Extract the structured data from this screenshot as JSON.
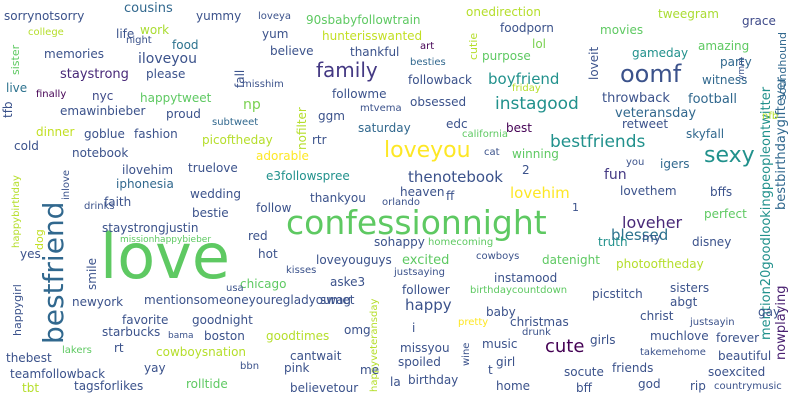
{
  "words": [
    {
      "text": "love",
      "color": "#5ec962"
    },
    {
      "text": "confessionnight",
      "color": "#5ec962"
    },
    {
      "text": "bestfriend",
      "color": "#31688e"
    },
    {
      "text": "loveyou",
      "color": "#fde725"
    },
    {
      "text": "oomf",
      "color": "#3b528b"
    },
    {
      "text": "family",
      "color": "#443983"
    },
    {
      "text": "sexy",
      "color": "#21918c"
    },
    {
      "text": "cute",
      "color": "#440154"
    },
    {
      "text": "instagood",
      "color": "#21918c"
    },
    {
      "text": "bestfriends",
      "color": "#21918c"
    },
    {
      "text": "loveher",
      "color": "#482878"
    },
    {
      "text": "thenotebook",
      "color": "#3b528b"
    },
    {
      "text": "boyfriend",
      "color": "#21918c"
    },
    {
      "text": "lovehim",
      "color": "#fde725"
    },
    {
      "text": "blessed",
      "color": "#2c728e"
    },
    {
      "text": "happy",
      "color": "#3b528b"
    },
    {
      "text": "excited",
      "color": "#5ec962"
    },
    {
      "text": "staystrong",
      "color": "#482878"
    },
    {
      "text": "iloveyou",
      "color": "#3b528b"
    },
    {
      "text": "mention20goodlookingpeopleontwitter",
      "color": "#21918c"
    },
    {
      "text": "bestbirthdaygiftever",
      "color": "#31688e"
    },
    {
      "text": "nowplaying",
      "color": "#481f70"
    },
    {
      "text": "football",
      "color": "#31688e"
    },
    {
      "text": "throwback",
      "color": "#3b528b"
    },
    {
      "text": "veteransday",
      "color": "#31688e"
    },
    {
      "text": "cousins",
      "color": "#31688e"
    },
    {
      "text": "yummy",
      "color": "#3b528b"
    },
    {
      "text": "sorrynotsorry",
      "color": "#3b528b"
    },
    {
      "text": "90sbabyfollowtrain",
      "color": "#5ec962"
    },
    {
      "text": "onedirection",
      "color": "#b5de2b"
    },
    {
      "text": "tweegram",
      "color": "#aadc32"
    },
    {
      "text": "grace",
      "color": "#3e4a89"
    },
    {
      "text": "sister",
      "color": "#5ec962"
    },
    {
      "text": "college",
      "color": "#b5de2b"
    },
    {
      "text": "work",
      "color": "#aadc32"
    },
    {
      "text": "yum",
      "color": "#3b528b"
    },
    {
      "text": "hunterisswanted",
      "color": "#c2df23"
    },
    {
      "text": "foodporn",
      "color": "#3b528b"
    },
    {
      "text": "movies",
      "color": "#5ec962"
    },
    {
      "text": "night",
      "color": "#3b528b"
    },
    {
      "text": "food",
      "color": "#2c728e"
    },
    {
      "text": "believe",
      "color": "#3b528b"
    },
    {
      "text": "cutie",
      "color": "#b5de2b"
    },
    {
      "text": "lol",
      "color": "#7ad151"
    },
    {
      "text": "amazing",
      "color": "#5ec962"
    },
    {
      "text": "memories",
      "color": "#3b528b"
    },
    {
      "text": "life",
      "color": "#3b528b"
    },
    {
      "text": "thankful",
      "color": "#3b528b"
    },
    {
      "text": "art",
      "color": "#440154"
    },
    {
      "text": "purpose",
      "color": "#5ec962"
    },
    {
      "text": "gameday",
      "color": "#21918c"
    },
    {
      "text": "party",
      "color": "#31688e"
    },
    {
      "text": "soundhound",
      "color": "#31688e"
    },
    {
      "text": "witness",
      "color": "#31688e"
    },
    {
      "text": "please",
      "color": "#3b528b"
    },
    {
      "text": "misshim",
      "color": "#3b528b"
    },
    {
      "text": "besties",
      "color": "#31688e"
    },
    {
      "text": "live",
      "color": "#2c728e"
    },
    {
      "text": "fall",
      "color": "#3b528b"
    },
    {
      "text": "followme",
      "color": "#3b528b"
    },
    {
      "text": "friday",
      "color": "#b5de2b"
    },
    {
      "text": "loveit",
      "color": "#3b528b"
    },
    {
      "text": "tfb",
      "color": "#3b528b"
    },
    {
      "text": "finally",
      "color": "#440154"
    },
    {
      "text": "followback",
      "color": "#3b528b"
    },
    {
      "text": "happytweet",
      "color": "#5ec962"
    },
    {
      "text": "nyc",
      "color": "#3e4a89"
    },
    {
      "text": "emawinbieber",
      "color": "#3b528b"
    },
    {
      "text": "np",
      "color": "#7ad151"
    },
    {
      "text": "proud",
      "color": "#3b528b"
    },
    {
      "text": "mtvema",
      "color": "#3b528b"
    },
    {
      "text": "obsessed",
      "color": "#3b528b"
    },
    {
      "text": "nfb",
      "color": "#b5de2b"
    },
    {
      "text": "nofilter",
      "color": "#b5de2b"
    },
    {
      "text": "ggm",
      "color": "#3b528b"
    },
    {
      "text": "subtweet",
      "color": "#31688e"
    },
    {
      "text": "edc",
      "color": "#3b528b"
    },
    {
      "text": "best",
      "color": "#440154"
    },
    {
      "text": "retweet",
      "color": "#3b528b"
    },
    {
      "text": "goblue",
      "color": "#3b528b"
    },
    {
      "text": "fashion",
      "color": "#3b528b"
    },
    {
      "text": "dinner",
      "color": "#c2df23"
    },
    {
      "text": "picoftheday",
      "color": "#b5de2b"
    },
    {
      "text": "rtr",
      "color": "#3b528b"
    },
    {
      "text": "saturday",
      "color": "#31688e"
    },
    {
      "text": "california",
      "color": "#5ec962"
    },
    {
      "text": "skyfall",
      "color": "#31688e"
    },
    {
      "text": "cold",
      "color": "#3b528b"
    },
    {
      "text": "notebook",
      "color": "#3b528b"
    },
    {
      "text": "adorable",
      "color": "#fde725"
    },
    {
      "text": "cat",
      "color": "#3b528b"
    },
    {
      "text": "winning",
      "color": "#5ec962"
    },
    {
      "text": "igers",
      "color": "#31688e"
    },
    {
      "text": "you",
      "color": "#3b528b"
    },
    {
      "text": "ilovehim",
      "color": "#3b528b"
    },
    {
      "text": "truelove",
      "color": "#3b528b"
    },
    {
      "text": "inlove",
      "color": "#3b528b"
    },
    {
      "text": "iphonesia",
      "color": "#31688e"
    },
    {
      "text": "e3followspree",
      "color": "#21918c"
    },
    {
      "text": "fun",
      "color": "#443983"
    },
    {
      "text": "wedding",
      "color": "#3b528b"
    },
    {
      "text": "thankyou",
      "color": "#3b528b"
    },
    {
      "text": "orlando",
      "color": "#3b528b"
    },
    {
      "text": "heaven",
      "color": "#3b528b"
    },
    {
      "text": "ff",
      "color": "#3b528b"
    },
    {
      "text": "lovethem",
      "color": "#3b528b"
    },
    {
      "text": "bffs",
      "color": "#3b528b"
    },
    {
      "text": "faith",
      "color": "#3b528b"
    },
    {
      "text": "follow",
      "color": "#3b528b"
    },
    {
      "text": "drinks",
      "color": "#3b528b"
    },
    {
      "text": "bestie",
      "color": "#3b528b"
    },
    {
      "text": "dog",
      "color": "#c2df23"
    },
    {
      "text": "perfect",
      "color": "#5ec962"
    },
    {
      "text": "staystrongjustin",
      "color": "#3b528b"
    },
    {
      "text": "missionhappybieber",
      "color": "#5ec962"
    },
    {
      "text": "red",
      "color": "#3b528b"
    },
    {
      "text": "sohappy",
      "color": "#3b528b"
    },
    {
      "text": "homecoming",
      "color": "#5ec962"
    },
    {
      "text": "truth",
      "color": "#21918c"
    },
    {
      "text": "my",
      "color": "#3b528b"
    },
    {
      "text": "disney",
      "color": "#3b528b"
    },
    {
      "text": "yes",
      "color": "#3b528b"
    },
    {
      "text": "happybirthday",
      "color": "#b5de2b"
    },
    {
      "text": "hot",
      "color": "#3b528b"
    },
    {
      "text": "loveyouguys",
      "color": "#3b528b"
    },
    {
      "text": "justsaying",
      "color": "#3b528b"
    },
    {
      "text": "cowboys",
      "color": "#3b528b"
    },
    {
      "text": "datenight",
      "color": "#5ec962"
    },
    {
      "text": "photooftheday",
      "color": "#b5de2b"
    },
    {
      "text": "smile",
      "color": "#3b528b"
    },
    {
      "text": "chicago",
      "color": "#5ec962"
    },
    {
      "text": "kisses",
      "color": "#3b528b"
    },
    {
      "text": "aske3",
      "color": "#3b528b"
    },
    {
      "text": "instamood",
      "color": "#3b528b"
    },
    {
      "text": "follower",
      "color": "#3b528b"
    },
    {
      "text": "birthdaycountdown",
      "color": "#5ec962"
    },
    {
      "text": "sisters",
      "color": "#3b528b"
    },
    {
      "text": "happygirl",
      "color": "#3b528b"
    },
    {
      "text": "newyork",
      "color": "#3b528b"
    },
    {
      "text": "mentionsomeoneyouregladyoumet",
      "color": "#3b528b"
    },
    {
      "text": "swag",
      "color": "#3b528b"
    },
    {
      "text": "picstitch",
      "color": "#3b528b"
    },
    {
      "text": "abgt",
      "color": "#3b528b"
    },
    {
      "text": "favorite",
      "color": "#3b528b"
    },
    {
      "text": "goodnight",
      "color": "#3b528b"
    },
    {
      "text": "pretty",
      "color": "#fde725"
    },
    {
      "text": "baby",
      "color": "#3b528b"
    },
    {
      "text": "christ",
      "color": "#3b528b"
    },
    {
      "text": "gay",
      "color": "#3b528b"
    },
    {
      "text": "starbucks",
      "color": "#3b528b"
    },
    {
      "text": "bama",
      "color": "#3b528b"
    },
    {
      "text": "boston",
      "color": "#3b528b"
    },
    {
      "text": "omg",
      "color": "#3b528b"
    },
    {
      "text": "i",
      "color": "#3b528b"
    },
    {
      "text": "christmas",
      "color": "#3b528b"
    },
    {
      "text": "justsayin",
      "color": "#3b528b"
    },
    {
      "text": "drunk",
      "color": "#3b528b"
    },
    {
      "text": "muchlove",
      "color": "#3b528b"
    },
    {
      "text": "lakers",
      "color": "#5ec962"
    },
    {
      "text": "rt",
      "color": "#3b528b"
    },
    {
      "text": "goodtimes",
      "color": "#b5de2b"
    },
    {
      "text": "forever",
      "color": "#3b528b"
    },
    {
      "text": "girls",
      "color": "#3b528b"
    },
    {
      "text": "cowboysnation",
      "color": "#b5de2b"
    },
    {
      "text": "missyou",
      "color": "#3b528b"
    },
    {
      "text": "music",
      "color": "#3b528b"
    },
    {
      "text": "takemehome",
      "color": "#3b528b"
    },
    {
      "text": "happyveteransday",
      "color": "#b5de2b"
    },
    {
      "text": "wine",
      "color": "#3b528b"
    },
    {
      "text": "thebest",
      "color": "#3b528b"
    },
    {
      "text": "cantwait",
      "color": "#3b528b"
    },
    {
      "text": "me",
      "color": "#3b528b"
    },
    {
      "text": "spoiled",
      "color": "#3b528b"
    },
    {
      "text": "girl",
      "color": "#3b528b"
    },
    {
      "text": "beautiful",
      "color": "#3b528b"
    },
    {
      "text": "yay",
      "color": "#3b528b"
    },
    {
      "text": "bbn",
      "color": "#3b528b"
    },
    {
      "text": "pink",
      "color": "#3b528b"
    },
    {
      "text": "teamfollowback",
      "color": "#3b528b"
    },
    {
      "text": "socute",
      "color": "#3b528b"
    },
    {
      "text": "friends",
      "color": "#3b528b"
    },
    {
      "text": "soexcited",
      "color": "#3b528b"
    },
    {
      "text": "tbt",
      "color": "#b5de2b"
    },
    {
      "text": "tagsforlikes",
      "color": "#3b528b"
    },
    {
      "text": "rolltide",
      "color": "#5ec962"
    },
    {
      "text": "believetour",
      "color": "#3b528b"
    },
    {
      "text": "la",
      "color": "#3b528b"
    },
    {
      "text": "birthday",
      "color": "#3b528b"
    },
    {
      "text": "t",
      "color": "#3b528b"
    },
    {
      "text": "home",
      "color": "#3b528b"
    },
    {
      "text": "bff",
      "color": "#3b528b"
    },
    {
      "text": "god",
      "color": "#3b528b"
    },
    {
      "text": "rip",
      "color": "#3b528b"
    },
    {
      "text": "countrymusic",
      "color": "#3b528b"
    },
    {
      "text": "loveya",
      "color": "#3b528b"
    },
    {
      "text": "usa",
      "color": "#3b528b"
    },
    {
      "text": "ymm",
      "color": "#3b528b"
    },
    {
      "text": "2",
      "color": "#3b528b"
    },
    {
      "text": "1",
      "color": "#3b528b"
    }
  ]
}
